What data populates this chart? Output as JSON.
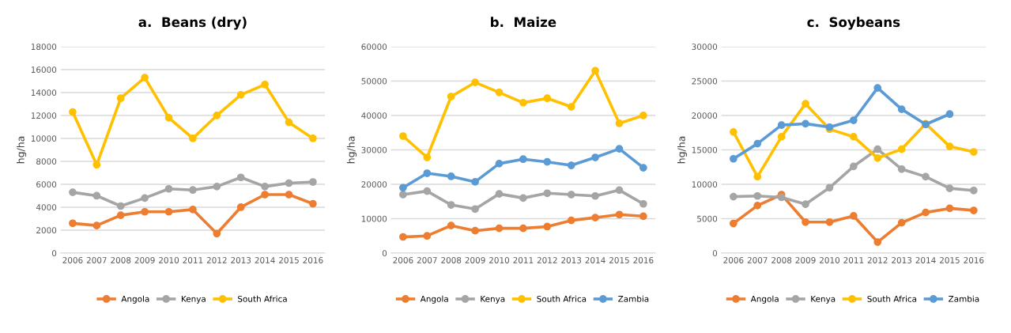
{
  "chart_data": [
    {
      "type": "line",
      "title": "a.  Beans (dry)",
      "ylabel": "hg/ha",
      "categories": [
        "2006",
        "2007",
        "2008",
        "2009",
        "2010",
        "2011",
        "2012",
        "2013",
        "2014",
        "2015",
        "2016"
      ],
      "ylim": [
        0,
        18000
      ],
      "yticks": [
        0,
        2000,
        4000,
        6000,
        8000,
        10000,
        12000,
        14000,
        16000,
        18000
      ],
      "grid": "y",
      "legend": "bottom",
      "marker": "circle",
      "series": [
        {
          "name": "Angola",
          "color": "#ed7d31",
          "values": [
            2600,
            2400,
            3300,
            3600,
            3600,
            3800,
            1700,
            4000,
            5100,
            5100,
            4300
          ]
        },
        {
          "name": "Kenya",
          "color": "#a5a5a5",
          "values": [
            5300,
            5000,
            4100,
            4800,
            5600,
            5500,
            5800,
            6600,
            5800,
            6100,
            6200
          ]
        },
        {
          "name": "South Africa",
          "color": "#ffc000",
          "values": [
            12300,
            7700,
            13500,
            15300,
            11800,
            10000,
            12000,
            13800,
            14700,
            11400,
            10000
          ]
        }
      ]
    },
    {
      "type": "line",
      "title": "b.  Maize",
      "ylabel": "hg/ha",
      "categories": [
        "2006",
        "2007",
        "2008",
        "2009",
        "2010",
        "2011",
        "2012",
        "2013",
        "2014",
        "2015",
        "2016"
      ],
      "ylim": [
        0,
        60000
      ],
      "yticks": [
        0,
        10000,
        20000,
        30000,
        40000,
        50000,
        60000
      ],
      "grid": "y",
      "legend": "bottom",
      "marker": "circle",
      "series": [
        {
          "name": "Angola",
          "color": "#ed7d31",
          "values": [
            4700,
            5000,
            8000,
            6500,
            7200,
            7200,
            7700,
            9500,
            10300,
            11200,
            10700
          ]
        },
        {
          "name": "Kenya",
          "color": "#a5a5a5",
          "values": [
            17000,
            18000,
            14000,
            12800,
            17200,
            16000,
            17400,
            17000,
            16600,
            18300,
            14300
          ]
        },
        {
          "name": "South Africa",
          "color": "#ffc000",
          "values": [
            34000,
            27800,
            45500,
            49600,
            46700,
            43700,
            45000,
            42500,
            53000,
            37700,
            40000
          ]
        },
        {
          "name": "Zambia",
          "color": "#5b9bd5",
          "values": [
            19000,
            23200,
            22300,
            20700,
            26000,
            27300,
            26500,
            25500,
            27800,
            30300,
            24800
          ]
        }
      ]
    },
    {
      "type": "line",
      "title": "c.  Soybeans",
      "ylabel": "hg/ha",
      "categories": [
        "2006",
        "2007",
        "2008",
        "2009",
        "2010",
        "2011",
        "2012",
        "2013",
        "2014",
        "2015",
        "2016"
      ],
      "ylim": [
        0,
        30000
      ],
      "yticks": [
        0,
        5000,
        10000,
        15000,
        20000,
        25000,
        30000
      ],
      "grid": "y",
      "legend": "bottom",
      "marker": "circle",
      "series": [
        {
          "name": "Angola",
          "color": "#ed7d31",
          "values": [
            4300,
            6900,
            8500,
            4500,
            4500,
            5400,
            1600,
            4400,
            5900,
            6500,
            6200
          ]
        },
        {
          "name": "Kenya",
          "color": "#a5a5a5",
          "values": [
            8200,
            8300,
            8100,
            7100,
            9500,
            12600,
            15100,
            12200,
            11100,
            9400,
            9100
          ]
        },
        {
          "name": "South Africa",
          "color": "#ffc000",
          "values": [
            17600,
            11100,
            16900,
            21700,
            18000,
            16900,
            13800,
            15100,
            18800,
            15500,
            14700
          ]
        },
        {
          "name": "Zambia",
          "color": "#5b9bd5",
          "values": [
            13700,
            15900,
            18600,
            18800,
            18300,
            19300,
            24000,
            20900,
            18700,
            20200,
            null
          ]
        }
      ]
    }
  ]
}
